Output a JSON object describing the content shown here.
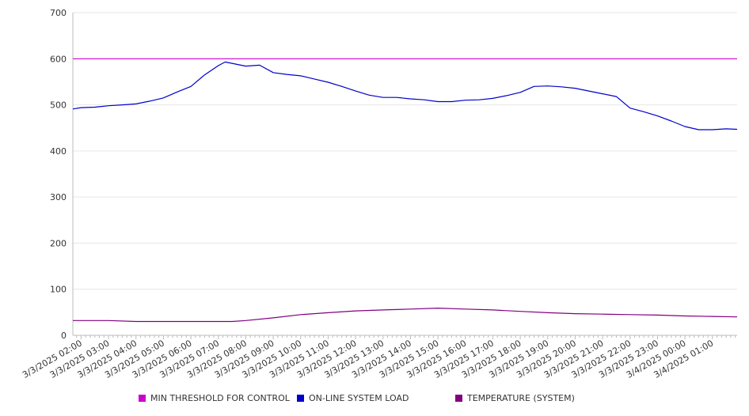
{
  "chart_data": {
    "type": "line",
    "ylim": [
      0,
      700
    ],
    "y_ticks": [
      0,
      100,
      200,
      300,
      400,
      500,
      600,
      700
    ],
    "x_range": [
      "3/3/2025 01:42",
      "3/4/2025 01:54"
    ],
    "x_tick_labels": [
      "3/3/2025 02:00",
      "3/3/2025 03:00",
      "3/3/2025 04:00",
      "3/3/2025 05:00",
      "3/3/2025 06:00",
      "3/3/2025 07:00",
      "3/3/2025 08:00",
      "3/3/2025 09:00",
      "3/3/2025 10:00",
      "3/3/2025 11:00",
      "3/3/2025 12:00",
      "3/3/2025 13:00",
      "3/3/2025 14:00",
      "3/3/2025 15:00",
      "3/3/2025 16:00",
      "3/3/2025 17:00",
      "3/3/2025 18:00",
      "3/3/2025 19:00",
      "3/3/2025 20:00",
      "3/3/2025 21:00",
      "3/3/2025 22:00",
      "3/3/2025 23:00",
      "3/4/2025 00:00",
      "3/4/2025 01:00"
    ],
    "grid": "horizontal",
    "legend_position": "bottom",
    "series": [
      {
        "name": "MIN THRESHOLD FOR CONTROL",
        "color": "#cc00cc",
        "points": [
          [
            "3/3/2025 01:42",
            600
          ],
          [
            "3/4/2025 01:54",
            600
          ]
        ]
      },
      {
        "name": "ON-LINE SYSTEM LOAD",
        "color": "#0000cc",
        "points": [
          [
            "3/3/2025 01:42",
            491
          ],
          [
            "3/3/2025 02:00",
            494
          ],
          [
            "3/3/2025 02:30",
            495
          ],
          [
            "3/3/2025 03:00",
            498
          ],
          [
            "3/3/2025 03:30",
            500
          ],
          [
            "3/3/2025 04:00",
            502
          ],
          [
            "3/3/2025 04:30",
            508
          ],
          [
            "3/3/2025 05:00",
            515
          ],
          [
            "3/3/2025 05:30",
            528
          ],
          [
            "3/3/2025 06:00",
            540
          ],
          [
            "3/3/2025 06:30",
            565
          ],
          [
            "3/3/2025 07:00",
            585
          ],
          [
            "3/3/2025 07:15",
            593
          ],
          [
            "3/3/2025 07:30",
            590
          ],
          [
            "3/3/2025 08:00",
            584
          ],
          [
            "3/3/2025 08:30",
            586
          ],
          [
            "3/3/2025 09:00",
            570
          ],
          [
            "3/3/2025 09:30",
            566
          ],
          [
            "3/3/2025 10:00",
            563
          ],
          [
            "3/3/2025 10:30",
            556
          ],
          [
            "3/3/2025 11:00",
            549
          ],
          [
            "3/3/2025 11:30",
            540
          ],
          [
            "3/3/2025 12:00",
            530
          ],
          [
            "3/3/2025 12:30",
            521
          ],
          [
            "3/3/2025 13:00",
            516
          ],
          [
            "3/3/2025 13:30",
            516
          ],
          [
            "3/3/2025 14:00",
            513
          ],
          [
            "3/3/2025 14:30",
            511
          ],
          [
            "3/3/2025 15:00",
            507
          ],
          [
            "3/3/2025 15:30",
            507
          ],
          [
            "3/3/2025 16:00",
            510
          ],
          [
            "3/3/2025 16:30",
            511
          ],
          [
            "3/3/2025 17:00",
            514
          ],
          [
            "3/3/2025 17:30",
            520
          ],
          [
            "3/3/2025 18:00",
            527
          ],
          [
            "3/3/2025 18:30",
            540
          ],
          [
            "3/3/2025 19:00",
            541
          ],
          [
            "3/3/2025 19:30",
            539
          ],
          [
            "3/3/2025 20:00",
            536
          ],
          [
            "3/3/2025 20:30",
            530
          ],
          [
            "3/3/2025 21:00",
            524
          ],
          [
            "3/3/2025 21:30",
            518
          ],
          [
            "3/3/2025 22:00",
            493
          ],
          [
            "3/3/2025 22:30",
            485
          ],
          [
            "3/3/2025 23:00",
            476
          ],
          [
            "3/3/2025 23:30",
            465
          ],
          [
            "3/4/2025 00:00",
            453
          ],
          [
            "3/4/2025 00:30",
            446
          ],
          [
            "3/4/2025 01:00",
            446
          ],
          [
            "3/4/2025 01:30",
            448
          ],
          [
            "3/4/2025 01:54",
            447
          ]
        ]
      },
      {
        "name": "TEMPERATURE (SYSTEM)",
        "color": "#800080",
        "points": [
          [
            "3/3/2025 01:42",
            32
          ],
          [
            "3/3/2025 03:00",
            32
          ],
          [
            "3/3/2025 04:00",
            30
          ],
          [
            "3/3/2025 06:00",
            30
          ],
          [
            "3/3/2025 07:30",
            30
          ],
          [
            "3/3/2025 08:00",
            32
          ],
          [
            "3/3/2025 09:00",
            38
          ],
          [
            "3/3/2025 10:00",
            45
          ],
          [
            "3/3/2025 11:00",
            49
          ],
          [
            "3/3/2025 12:00",
            53
          ],
          [
            "3/3/2025 13:00",
            55
          ],
          [
            "3/3/2025 14:00",
            57
          ],
          [
            "3/3/2025 15:00",
            59
          ],
          [
            "3/3/2025 16:00",
            57
          ],
          [
            "3/3/2025 17:00",
            55
          ],
          [
            "3/3/2025 18:00",
            52
          ],
          [
            "3/3/2025 19:00",
            49
          ],
          [
            "3/3/2025 20:00",
            47
          ],
          [
            "3/3/2025 21:00",
            46
          ],
          [
            "3/3/2025 22:00",
            45
          ],
          [
            "3/3/2025 23:00",
            44
          ],
          [
            "3/4/2025 00:00",
            42
          ],
          [
            "3/4/2025 01:00",
            41
          ],
          [
            "3/4/2025 01:54",
            40
          ]
        ]
      }
    ]
  }
}
